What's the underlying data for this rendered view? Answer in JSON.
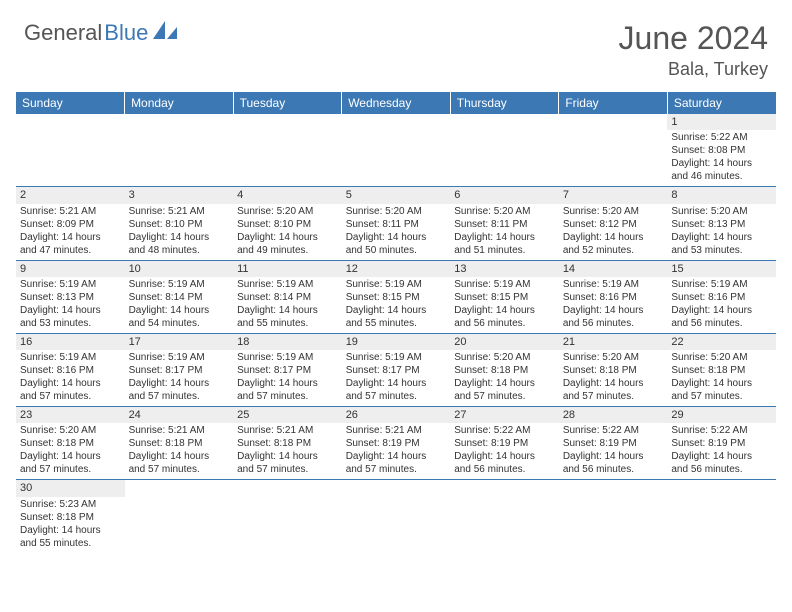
{
  "logo": {
    "part1": "General",
    "part2": "Blue"
  },
  "header": {
    "title": "June 2024",
    "location": "Bala, Turkey"
  },
  "colors": {
    "accent": "#3c78b4",
    "header_text": "#ffffff",
    "body_text": "#333333",
    "muted_text": "#555555",
    "daynum_bg": "#eeeeee",
    "row_divider": "#3c78b4"
  },
  "weekdays": [
    "Sunday",
    "Monday",
    "Tuesday",
    "Wednesday",
    "Thursday",
    "Friday",
    "Saturday"
  ],
  "labels": {
    "sunrise": "Sunrise:",
    "sunset": "Sunset:",
    "daylight_prefix": "Daylight:",
    "hours_word": "hours",
    "and_word": "and",
    "minutes_word": "minutes."
  },
  "days": [
    {
      "n": 1,
      "sunrise": "5:22 AM",
      "sunset": "8:08 PM",
      "dl_h": 14,
      "dl_m": 46
    },
    {
      "n": 2,
      "sunrise": "5:21 AM",
      "sunset": "8:09 PM",
      "dl_h": 14,
      "dl_m": 47
    },
    {
      "n": 3,
      "sunrise": "5:21 AM",
      "sunset": "8:10 PM",
      "dl_h": 14,
      "dl_m": 48
    },
    {
      "n": 4,
      "sunrise": "5:20 AM",
      "sunset": "8:10 PM",
      "dl_h": 14,
      "dl_m": 49
    },
    {
      "n": 5,
      "sunrise": "5:20 AM",
      "sunset": "8:11 PM",
      "dl_h": 14,
      "dl_m": 50
    },
    {
      "n": 6,
      "sunrise": "5:20 AM",
      "sunset": "8:11 PM",
      "dl_h": 14,
      "dl_m": 51
    },
    {
      "n": 7,
      "sunrise": "5:20 AM",
      "sunset": "8:12 PM",
      "dl_h": 14,
      "dl_m": 52
    },
    {
      "n": 8,
      "sunrise": "5:20 AM",
      "sunset": "8:13 PM",
      "dl_h": 14,
      "dl_m": 53
    },
    {
      "n": 9,
      "sunrise": "5:19 AM",
      "sunset": "8:13 PM",
      "dl_h": 14,
      "dl_m": 53
    },
    {
      "n": 10,
      "sunrise": "5:19 AM",
      "sunset": "8:14 PM",
      "dl_h": 14,
      "dl_m": 54
    },
    {
      "n": 11,
      "sunrise": "5:19 AM",
      "sunset": "8:14 PM",
      "dl_h": 14,
      "dl_m": 55
    },
    {
      "n": 12,
      "sunrise": "5:19 AM",
      "sunset": "8:15 PM",
      "dl_h": 14,
      "dl_m": 55
    },
    {
      "n": 13,
      "sunrise": "5:19 AM",
      "sunset": "8:15 PM",
      "dl_h": 14,
      "dl_m": 56
    },
    {
      "n": 14,
      "sunrise": "5:19 AM",
      "sunset": "8:16 PM",
      "dl_h": 14,
      "dl_m": 56
    },
    {
      "n": 15,
      "sunrise": "5:19 AM",
      "sunset": "8:16 PM",
      "dl_h": 14,
      "dl_m": 56
    },
    {
      "n": 16,
      "sunrise": "5:19 AM",
      "sunset": "8:16 PM",
      "dl_h": 14,
      "dl_m": 57
    },
    {
      "n": 17,
      "sunrise": "5:19 AM",
      "sunset": "8:17 PM",
      "dl_h": 14,
      "dl_m": 57
    },
    {
      "n": 18,
      "sunrise": "5:19 AM",
      "sunset": "8:17 PM",
      "dl_h": 14,
      "dl_m": 57
    },
    {
      "n": 19,
      "sunrise": "5:19 AM",
      "sunset": "8:17 PM",
      "dl_h": 14,
      "dl_m": 57
    },
    {
      "n": 20,
      "sunrise": "5:20 AM",
      "sunset": "8:18 PM",
      "dl_h": 14,
      "dl_m": 57
    },
    {
      "n": 21,
      "sunrise": "5:20 AM",
      "sunset": "8:18 PM",
      "dl_h": 14,
      "dl_m": 57
    },
    {
      "n": 22,
      "sunrise": "5:20 AM",
      "sunset": "8:18 PM",
      "dl_h": 14,
      "dl_m": 57
    },
    {
      "n": 23,
      "sunrise": "5:20 AM",
      "sunset": "8:18 PM",
      "dl_h": 14,
      "dl_m": 57
    },
    {
      "n": 24,
      "sunrise": "5:21 AM",
      "sunset": "8:18 PM",
      "dl_h": 14,
      "dl_m": 57
    },
    {
      "n": 25,
      "sunrise": "5:21 AM",
      "sunset": "8:18 PM",
      "dl_h": 14,
      "dl_m": 57
    },
    {
      "n": 26,
      "sunrise": "5:21 AM",
      "sunset": "8:19 PM",
      "dl_h": 14,
      "dl_m": 57
    },
    {
      "n": 27,
      "sunrise": "5:22 AM",
      "sunset": "8:19 PM",
      "dl_h": 14,
      "dl_m": 56
    },
    {
      "n": 28,
      "sunrise": "5:22 AM",
      "sunset": "8:19 PM",
      "dl_h": 14,
      "dl_m": 56
    },
    {
      "n": 29,
      "sunrise": "5:22 AM",
      "sunset": "8:19 PM",
      "dl_h": 14,
      "dl_m": 56
    },
    {
      "n": 30,
      "sunrise": "5:23 AM",
      "sunset": "8:18 PM",
      "dl_h": 14,
      "dl_m": 55
    }
  ],
  "layout": {
    "first_weekday_index": 6,
    "cols": 7
  }
}
